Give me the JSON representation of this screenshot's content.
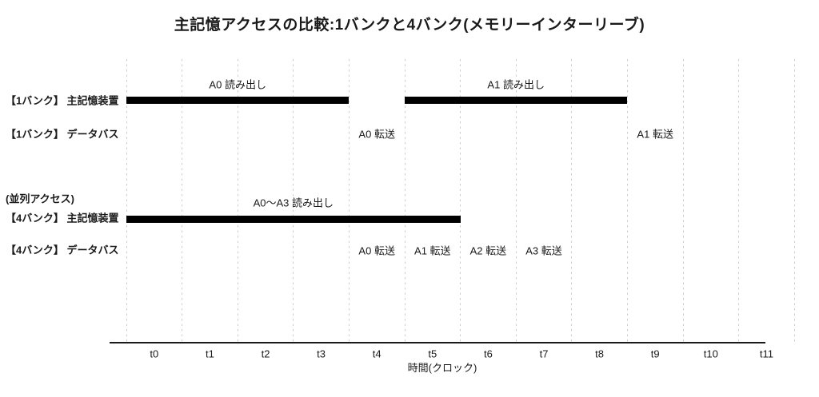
{
  "title": "主記憶アクセスの比較:1バンクと4バンク(メモリーインターリーブ)",
  "chart_data": {
    "type": "bar",
    "subtype": "gantt-timing-diagram",
    "title": "主記憶アクセスの比較:1バンクと4バンク(メモリーインターリーブ)",
    "xlabel": "時間(クロック)",
    "x_ticks": [
      "t0",
      "t1",
      "t2",
      "t3",
      "t4",
      "t5",
      "t6",
      "t7",
      "t8",
      "t9",
      "t10",
      "t11"
    ],
    "clock_count": 12,
    "grid": true,
    "legend": false,
    "rows": [
      {
        "id": "bank1-memory",
        "label": "【1バンク】 主記憶装置",
        "bars": [
          {
            "label": "A0 読み出し",
            "start_clock": 0,
            "end_clock": 4
          },
          {
            "label": "A1 読み出し",
            "start_clock": 5,
            "end_clock": 9
          }
        ]
      },
      {
        "id": "bank1-bus",
        "label": "【1バンク】 データバス",
        "events": [
          {
            "label": "A0 転送",
            "clock": 4
          },
          {
            "label": "A1 転送",
            "clock": 9
          }
        ]
      },
      {
        "id": "bank4-memory",
        "label": "【4バンク】 主記憶装置",
        "note": "(並列アクセス)",
        "bars": [
          {
            "label": "A0〜A3 読み出し",
            "start_clock": 0,
            "end_clock": 6
          }
        ]
      },
      {
        "id": "bank4-bus",
        "label": "【4バンク】 データバス",
        "events": [
          {
            "label": "A0 転送",
            "clock": 4
          },
          {
            "label": "A1 転送",
            "clock": 5
          },
          {
            "label": "A2 転送",
            "clock": 6
          },
          {
            "label": "A3 転送",
            "clock": 7
          }
        ]
      }
    ],
    "colors": {
      "bar": "#000000",
      "grid": "#cccccc",
      "axis": "#1a1a1a",
      "text": "#1a1a1a",
      "background": "#ffffff"
    }
  }
}
